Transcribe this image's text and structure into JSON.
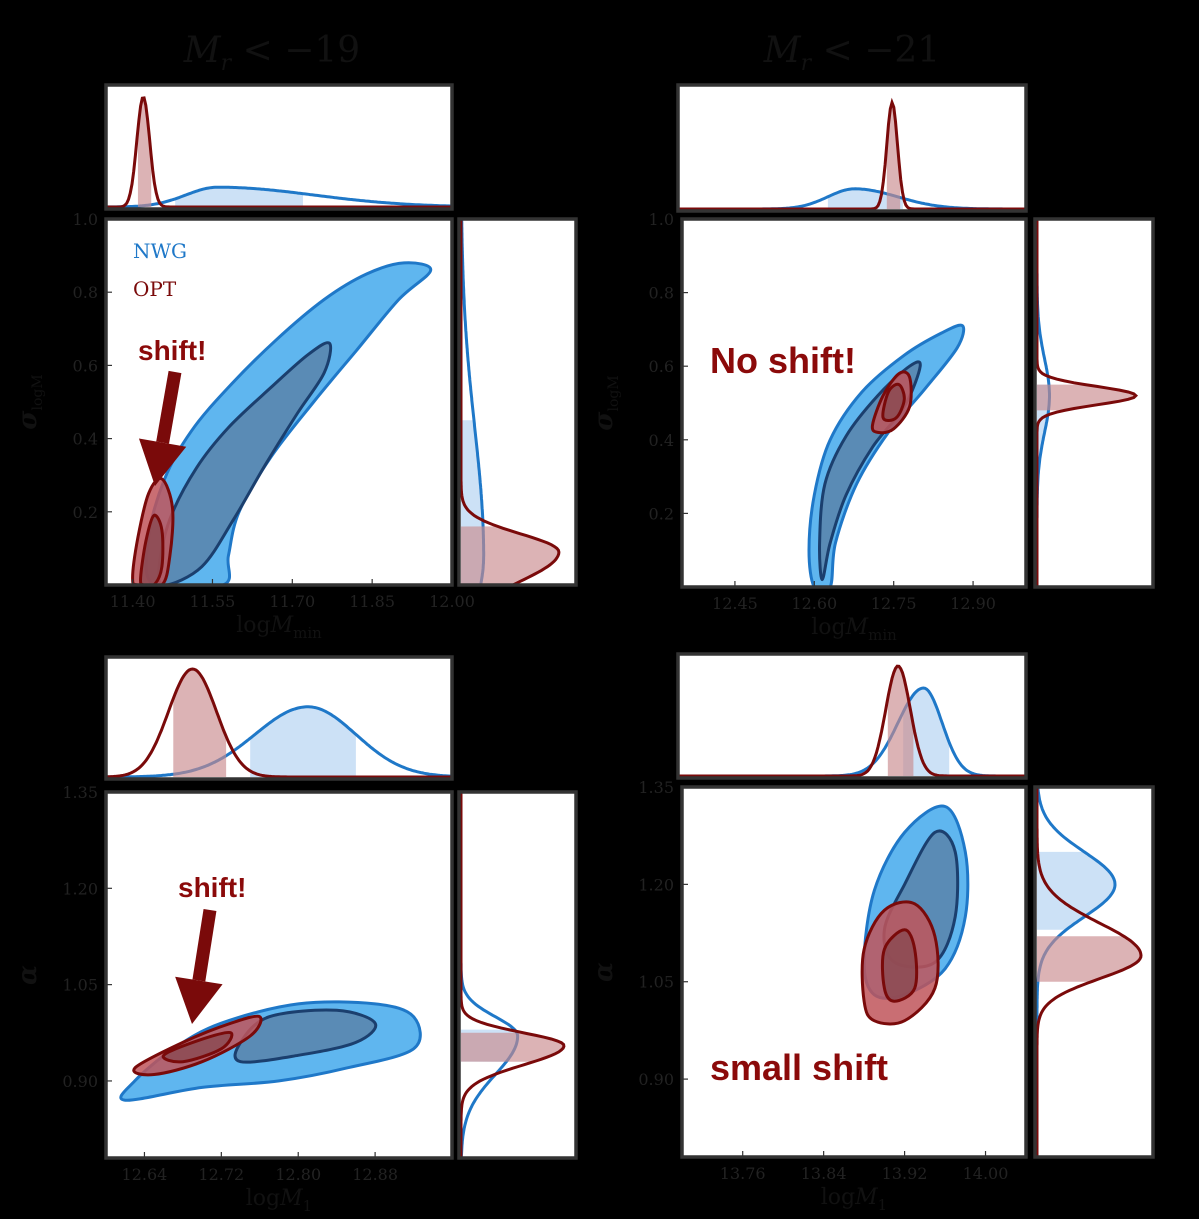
{
  "colors": {
    "nwg_fill_outer": "#5fb6ef",
    "nwg_fill_inner": "#5a8bb5",
    "nwg_line": "#1f78c8",
    "nwg_dark": "#1b3f6e",
    "opt_fill_outer": "#c0555a",
    "opt_fill_inner": "#8c4a52",
    "opt_line": "#7a0a0a",
    "opt_annot": "#8b0a0a"
  },
  "legend": {
    "nwg": "NWG",
    "opt": "OPT"
  },
  "columns": [
    {
      "title": "M_r < −19",
      "title_main": "M",
      "title_sub": "r",
      "title_rest": " < −19"
    },
    {
      "title": "M_r < −21",
      "title_main": "M",
      "title_sub": "r",
      "title_rest": " < −21"
    }
  ],
  "annotations": {
    "p1": "shift!",
    "p2": "No shift!",
    "p3": "shift!",
    "p4": "small shift"
  },
  "chart_data": [
    {
      "type": "corner-2d-contour",
      "id": "mr19-logMmin-sigma",
      "xlabel": "logM_min",
      "xlabel_main": "log",
      "xlabel_it": "M",
      "xlabel_sub": "min",
      "ylabel": "σ_logM",
      "ylabel_main": "σ",
      "ylabel_sub": "logM",
      "xlim": [
        11.35,
        12.0
      ],
      "ylim": [
        0.0,
        1.0
      ],
      "xticks": [
        "11.40",
        "11.55",
        "11.70",
        "11.85",
        "12.00"
      ],
      "xtick_values": [
        11.4,
        11.55,
        11.7,
        11.85,
        12.0
      ],
      "yticks": [
        "0.2",
        "0.4",
        "0.6",
        "0.8",
        "1.0"
      ],
      "ytick_values": [
        0.2,
        0.4,
        0.6,
        0.8,
        1.0
      ],
      "series": [
        {
          "name": "NWG",
          "outer": [
            [
              11.44,
              0.0
            ],
            [
              11.57,
              0.0
            ],
            [
              11.58,
              0.08
            ],
            [
              11.6,
              0.2
            ],
            [
              11.66,
              0.35
            ],
            [
              11.74,
              0.5
            ],
            [
              11.82,
              0.64
            ],
            [
              11.9,
              0.78
            ],
            [
              11.96,
              0.86
            ],
            [
              11.91,
              0.88
            ],
            [
              11.84,
              0.85
            ],
            [
              11.76,
              0.78
            ],
            [
              11.67,
              0.67
            ],
            [
              11.58,
              0.54
            ],
            [
              11.51,
              0.42
            ],
            [
              11.46,
              0.29
            ],
            [
              11.43,
              0.13
            ]
          ],
          "inner": [
            [
              11.46,
              0.0
            ],
            [
              11.53,
              0.05
            ],
            [
              11.59,
              0.18
            ],
            [
              11.65,
              0.33
            ],
            [
              11.71,
              0.47
            ],
            [
              11.76,
              0.58
            ],
            [
              11.77,
              0.66
            ],
            [
              11.73,
              0.63
            ],
            [
              11.66,
              0.54
            ],
            [
              11.58,
              0.43
            ],
            [
              11.52,
              0.32
            ],
            [
              11.47,
              0.18
            ],
            [
              11.45,
              0.05
            ]
          ]
        },
        {
          "name": "OPT",
          "outer": [
            [
              11.4,
              0.02
            ],
            [
              11.41,
              0.13
            ],
            [
              11.43,
              0.25
            ],
            [
              11.455,
              0.29
            ],
            [
              11.475,
              0.21
            ],
            [
              11.47,
              0.08
            ],
            [
              11.455,
              0.0
            ],
            [
              11.41,
              0.0
            ]
          ],
          "inner": [
            [
              11.415,
              0.02
            ],
            [
              11.425,
              0.12
            ],
            [
              11.44,
              0.19
            ],
            [
              11.455,
              0.15
            ],
            [
              11.455,
              0.05
            ],
            [
              11.44,
              0.0
            ],
            [
              11.42,
              0.0
            ]
          ]
        }
      ]
    },
    {
      "type": "corner-2d-contour",
      "id": "mr21-logMmin-sigma",
      "xlabel": "logM_min",
      "xlabel_main": "log",
      "xlabel_it": "M",
      "xlabel_sub": "min",
      "ylabel": "σ_logM",
      "ylabel_main": "σ",
      "ylabel_sub": "logM",
      "xlim": [
        12.35,
        13.0
      ],
      "ylim": [
        0.0,
        1.0
      ],
      "xticks": [
        "12.45",
        "12.60",
        "12.75",
        "12.90"
      ],
      "xtick_values": [
        12.45,
        12.6,
        12.75,
        12.9
      ],
      "yticks": [
        "0.2",
        "0.4",
        "0.6",
        "0.8",
        "1.0"
      ],
      "ytick_values": [
        0.2,
        0.4,
        0.6,
        0.8,
        1.0
      ],
      "series": [
        {
          "name": "NWG",
          "outer": [
            [
              12.6,
              0.0
            ],
            [
              12.63,
              0.0
            ],
            [
              12.64,
              0.12
            ],
            [
              12.68,
              0.28
            ],
            [
              12.74,
              0.42
            ],
            [
              12.81,
              0.54
            ],
            [
              12.87,
              0.65
            ],
            [
              12.88,
              0.71
            ],
            [
              12.84,
              0.69
            ],
            [
              12.77,
              0.63
            ],
            [
              12.69,
              0.53
            ],
            [
              12.63,
              0.4
            ],
            [
              12.6,
              0.25
            ],
            [
              12.59,
              0.1
            ]
          ],
          "inner": [
            [
              12.615,
              0.02
            ],
            [
              12.63,
              0.12
            ],
            [
              12.66,
              0.25
            ],
            [
              12.71,
              0.38
            ],
            [
              12.77,
              0.49
            ],
            [
              12.8,
              0.6
            ],
            [
              12.78,
              0.6
            ],
            [
              12.72,
              0.52
            ],
            [
              12.66,
              0.41
            ],
            [
              12.62,
              0.28
            ],
            [
              12.61,
              0.12
            ]
          ]
        },
        {
          "name": "OPT",
          "outer": [
            [
              12.71,
              0.44
            ],
            [
              12.73,
              0.52
            ],
            [
              12.76,
              0.58
            ],
            [
              12.78,
              0.57
            ],
            [
              12.78,
              0.49
            ],
            [
              12.75,
              0.43
            ],
            [
              12.72,
              0.42
            ]
          ],
          "inner": [
            [
              12.73,
              0.46
            ],
            [
              12.74,
              0.53
            ],
            [
              12.76,
              0.55
            ],
            [
              12.77,
              0.51
            ],
            [
              12.755,
              0.46
            ]
          ]
        }
      ]
    },
    {
      "type": "corner-2d-contour",
      "id": "mr19-logM1-alpha",
      "xlabel": "logM_1",
      "xlabel_main": "log",
      "xlabel_it": "M",
      "xlabel_sub": "1",
      "ylabel": "α",
      "ylabel_main": "α",
      "ylabel_sub": "",
      "xlim": [
        12.6,
        12.96
      ],
      "ylim": [
        0.78,
        1.35
      ],
      "xticks": [
        "12.64",
        "12.72",
        "12.80",
        "12.88"
      ],
      "xtick_values": [
        12.64,
        12.72,
        12.8,
        12.88
      ],
      "yticks": [
        "0.90",
        "1.05",
        "1.20",
        "1.35"
      ],
      "ytick_values": [
        0.9,
        1.05,
        1.2,
        1.35
      ],
      "series": [
        {
          "name": "NWG",
          "outer": [
            [
              12.62,
              0.87
            ],
            [
              12.7,
              0.89
            ],
            [
              12.78,
              0.9
            ],
            [
              12.85,
              0.92
            ],
            [
              12.92,
              0.95
            ],
            [
              12.92,
              1.0
            ],
            [
              12.88,
              1.02
            ],
            [
              12.8,
              1.02
            ],
            [
              12.72,
              0.99
            ],
            [
              12.67,
              0.95
            ],
            [
              12.63,
              0.9
            ]
          ],
          "inner": [
            [
              12.74,
              0.93
            ],
            [
              12.8,
              0.94
            ],
            [
              12.86,
              0.96
            ],
            [
              12.88,
              0.99
            ],
            [
              12.84,
              1.01
            ],
            [
              12.77,
              1.0
            ],
            [
              12.74,
              0.96
            ]
          ]
        },
        {
          "name": "OPT",
          "outer": [
            [
              12.63,
              0.92
            ],
            [
              12.68,
              0.96
            ],
            [
              12.73,
              0.99
            ],
            [
              12.76,
              1.0
            ],
            [
              12.75,
              0.97
            ],
            [
              12.7,
              0.93
            ],
            [
              12.65,
              0.91
            ]
          ],
          "inner": [
            [
              12.66,
              0.94
            ],
            [
              12.7,
              0.965
            ],
            [
              12.73,
              0.975
            ],
            [
              12.72,
              0.95
            ],
            [
              12.68,
              0.93
            ]
          ]
        }
      ]
    },
    {
      "type": "corner-2d-contour",
      "id": "mr21-logM1-alpha",
      "xlabel": "logM_1",
      "xlabel_main": "log",
      "xlabel_it": "M",
      "xlabel_sub": "1",
      "ylabel": "α",
      "ylabel_main": "α",
      "ylabel_sub": "",
      "xlim": [
        13.7,
        14.04
      ],
      "ylim": [
        0.78,
        1.35
      ],
      "xticks": [
        "13.76",
        "13.84",
        "13.92",
        "14.00"
      ],
      "xtick_values": [
        13.76,
        13.84,
        13.92,
        14.0
      ],
      "yticks": [
        "0.90",
        "1.05",
        "1.20",
        "1.35"
      ],
      "ytick_values": [
        0.9,
        1.05,
        1.2,
        1.35
      ],
      "series": [
        {
          "name": "NWG",
          "outer": [
            [
              13.88,
              1.08
            ],
            [
              13.89,
              1.19
            ],
            [
              13.92,
              1.28
            ],
            [
              13.96,
              1.32
            ],
            [
              13.98,
              1.25
            ],
            [
              13.98,
              1.15
            ],
            [
              13.96,
              1.07
            ],
            [
              13.92,
              1.03
            ],
            [
              13.89,
              1.03
            ]
          ],
          "inner": [
            [
              13.9,
              1.13
            ],
            [
              13.92,
              1.2
            ],
            [
              13.95,
              1.28
            ],
            [
              13.97,
              1.25
            ],
            [
              13.97,
              1.15
            ],
            [
              13.95,
              1.08
            ],
            [
              13.91,
              1.08
            ]
          ]
        },
        {
          "name": "OPT",
          "outer": [
            [
              13.88,
              1.02
            ],
            [
              13.88,
              1.1
            ],
            [
              13.9,
              1.16
            ],
            [
              13.93,
              1.17
            ],
            [
              13.95,
              1.12
            ],
            [
              13.95,
              1.04
            ],
            [
              13.92,
              0.99
            ],
            [
              13.89,
              0.99
            ]
          ],
          "inner": [
            [
              13.9,
              1.04
            ],
            [
              13.9,
              1.1
            ],
            [
              13.92,
              1.13
            ],
            [
              13.93,
              1.1
            ],
            [
              13.93,
              1.04
            ],
            [
              13.91,
              1.02
            ]
          ]
        }
      ]
    }
  ],
  "marginals": [
    {
      "id": "mr19-logMmin-marg",
      "xlim": [
        11.35,
        12.0
      ],
      "nwg": {
        "peak": 11.56,
        "width_left": 0.06,
        "width_right": 0.18,
        "height": 0.18,
        "band": [
          11.48,
          11.72
        ]
      },
      "opt": {
        "peak": 11.42,
        "width_left": 0.012,
        "width_right": 0.012,
        "height": 1.0,
        "band": [
          11.41,
          11.435
        ]
      }
    },
    {
      "id": "mr19-sigma-marg",
      "ylim": [
        0.0,
        1.0
      ],
      "nwg": {
        "peak": 0.08,
        "width_left": 0.15,
        "width_right": 0.35,
        "height": 0.22,
        "band": [
          0.0,
          0.45
        ]
      },
      "opt": {
        "peak": 0.09,
        "width_left": 0.08,
        "width_right": 0.05,
        "height": 0.95,
        "band": [
          0.0,
          0.16
        ]
      }
    },
    {
      "id": "mr21-logMmin-marg",
      "xlim": [
        12.35,
        13.0
      ],
      "nwg": {
        "peak": 12.68,
        "width_left": 0.05,
        "width_right": 0.08,
        "height": 0.18,
        "band": [
          12.63,
          12.77
        ]
      },
      "opt": {
        "peak": 12.75,
        "width_left": 0.01,
        "width_right": 0.01,
        "height": 0.95,
        "band": [
          12.74,
          12.765
        ]
      }
    },
    {
      "id": "mr21-sigma-marg",
      "ylim": [
        0.0,
        1.0
      ],
      "nwg": {
        "peak": 0.52,
        "width_left": 0.1,
        "width_right": 0.1,
        "height": 0.12,
        "band": [
          0.0,
          0.55
        ]
      },
      "opt": {
        "peak": 0.52,
        "width_left": 0.025,
        "width_right": 0.025,
        "height": 0.95,
        "band": [
          0.48,
          0.55
        ]
      }
    },
    {
      "id": "mr19-logM1-marg",
      "xlim": [
        12.6,
        12.96
      ],
      "nwg": {
        "peak": 12.81,
        "width_left": 0.055,
        "width_right": 0.05,
        "height": 0.65,
        "band": [
          12.75,
          12.86
        ]
      },
      "opt": {
        "peak": 12.69,
        "width_left": 0.025,
        "width_right": 0.025,
        "height": 1.0,
        "band": [
          12.67,
          12.725
        ]
      }
    },
    {
      "id": "mr19-alpha-marg",
      "ylim": [
        0.78,
        1.35
      ],
      "nwg": {
        "peak": 0.97,
        "width_left": 0.06,
        "width_right": 0.03,
        "height": 0.55,
        "band": [
          0.93,
          0.98
        ]
      },
      "opt": {
        "peak": 0.955,
        "width_left": 0.03,
        "width_right": 0.02,
        "height": 1.0,
        "band": [
          0.93,
          0.975
        ]
      }
    },
    {
      "id": "mr21-logM1-marg",
      "xlim": [
        13.7,
        14.04
      ],
      "nwg": {
        "peak": 13.94,
        "width_left": 0.025,
        "width_right": 0.018,
        "height": 0.8,
        "band": [
          13.92,
          13.965
        ]
      },
      "opt": {
        "peak": 13.915,
        "width_left": 0.012,
        "width_right": 0.012,
        "height": 1.0,
        "band": [
          13.905,
          13.93
        ]
      }
    },
    {
      "id": "mr21-alpha-marg",
      "ylim": [
        0.78,
        1.35
      ],
      "nwg": {
        "peak": 1.2,
        "width_left": 0.05,
        "width_right": 0.05,
        "height": 0.75,
        "band": [
          1.13,
          1.25
        ]
      },
      "opt": {
        "peak": 1.09,
        "width_left": 0.035,
        "width_right": 0.05,
        "height": 1.0,
        "band": [
          1.05,
          1.12
        ]
      }
    }
  ]
}
